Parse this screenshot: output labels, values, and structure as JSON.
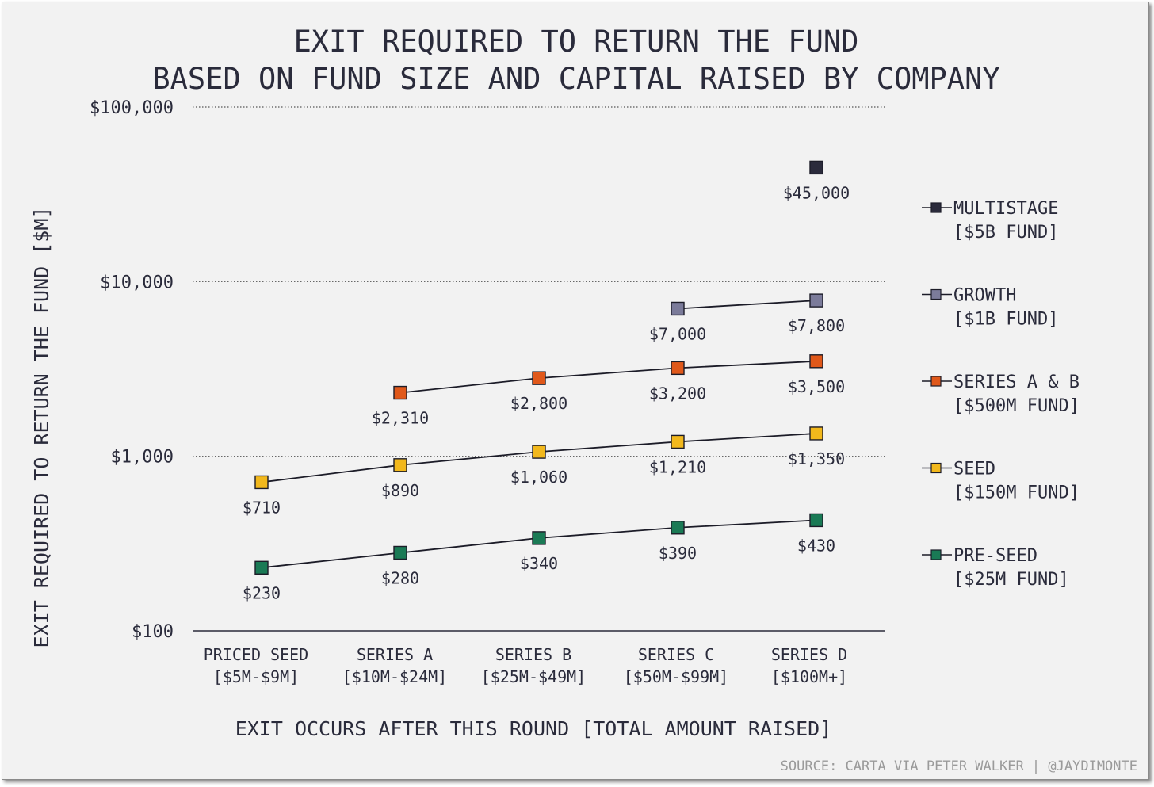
{
  "chart_data": {
    "type": "line",
    "title": [
      "EXIT REQUIRED TO RETURN THE FUND",
      "BASED ON FUND SIZE AND CAPITAL RAISED BY COMPANY"
    ],
    "xlabel": "EXIT OCCURS AFTER THIS ROUND [TOTAL AMOUNT RAISED]",
    "ylabel": "EXIT REQUIRED TO RETURN THE FUND [$M]",
    "yscale": "log",
    "ylim": [
      100,
      100000
    ],
    "yticks": [
      100,
      1000,
      10000,
      100000
    ],
    "ytick_labels": [
      "$100",
      "$1,000",
      "$10,000",
      "$100,000"
    ],
    "grid": "horizontal dotted",
    "legend_position": "right",
    "categories": [
      [
        "PRICED SEED",
        "[$5M-$9M]"
      ],
      [
        "SERIES A",
        "[$10M-$24M]"
      ],
      [
        "SERIES B",
        "[$25M-$49M]"
      ],
      [
        "SERIES C",
        "[$50M-$99M]"
      ],
      [
        "SERIES D",
        "[$100M+]"
      ]
    ],
    "series": [
      {
        "name": [
          "MULTISTAGE",
          "[$5B FUND]"
        ],
        "color": "#2b2b3c",
        "values": [
          null,
          null,
          null,
          null,
          45000
        ],
        "labels": [
          null,
          null,
          null,
          null,
          "$45,000"
        ]
      },
      {
        "name": [
          "GROWTH",
          "[$1B FUND]"
        ],
        "color": "#7b7b9a",
        "values": [
          null,
          null,
          null,
          7000,
          7800
        ],
        "labels": [
          null,
          null,
          null,
          "$7,000",
          "$7,800"
        ]
      },
      {
        "name": [
          "SERIES A & B",
          "[$500M FUND]"
        ],
        "color": "#e0581a",
        "values": [
          null,
          2310,
          2800,
          3200,
          3500
        ],
        "labels": [
          null,
          "$2,310",
          "$2,800",
          "$3,200",
          "$3,500"
        ]
      },
      {
        "name": [
          "SEED",
          "[$150M FUND]"
        ],
        "color": "#f2b81c",
        "values": [
          710,
          890,
          1060,
          1210,
          1350
        ],
        "labels": [
          "$710",
          "$890",
          "$1,060",
          "$1,210",
          "$1,350"
        ]
      },
      {
        "name": [
          "PRE-SEED",
          "[$25M FUND]"
        ],
        "color": "#1a7a55",
        "values": [
          230,
          280,
          340,
          390,
          430
        ],
        "labels": [
          "$230",
          "$280",
          "$340",
          "$390",
          "$430"
        ]
      }
    ],
    "source": "SOURCE: CARTA VIA PETER WALKER | @JAYDIMONTE"
  }
}
